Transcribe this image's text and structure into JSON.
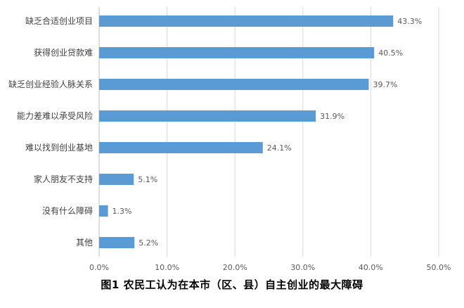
{
  "caption": "图1  农民工认为在本市（区、县）自主创业的最大障碍",
  "colors": {
    "bar": "#5b9bd5",
    "grid": "#d9d9d9"
  },
  "chart_data": {
    "type": "bar",
    "orientation": "horizontal",
    "title": "",
    "xlabel": "",
    "ylabel": "",
    "xlim": [
      0,
      50
    ],
    "ticks": [
      "0.0%",
      "10.0%",
      "20.0%",
      "30.0%",
      "40.0%",
      "50.0%"
    ],
    "categories": [
      "缺乏合适创业项目",
      "获得创业贷款难",
      "缺乏创业经验人脉关系",
      "能力差难以承受风险",
      "难以找到创业基地",
      "家人朋友不支持",
      "没有什么障碍",
      "其他"
    ],
    "values": [
      43.3,
      40.5,
      39.7,
      31.9,
      24.1,
      5.1,
      1.3,
      5.2
    ],
    "value_labels": [
      "43.3%",
      "40.5%",
      "39.7%",
      "31.9%",
      "24.1%",
      "5.1%",
      "1.3%",
      "5.2%"
    ],
    "grid": true,
    "legend": "none"
  }
}
